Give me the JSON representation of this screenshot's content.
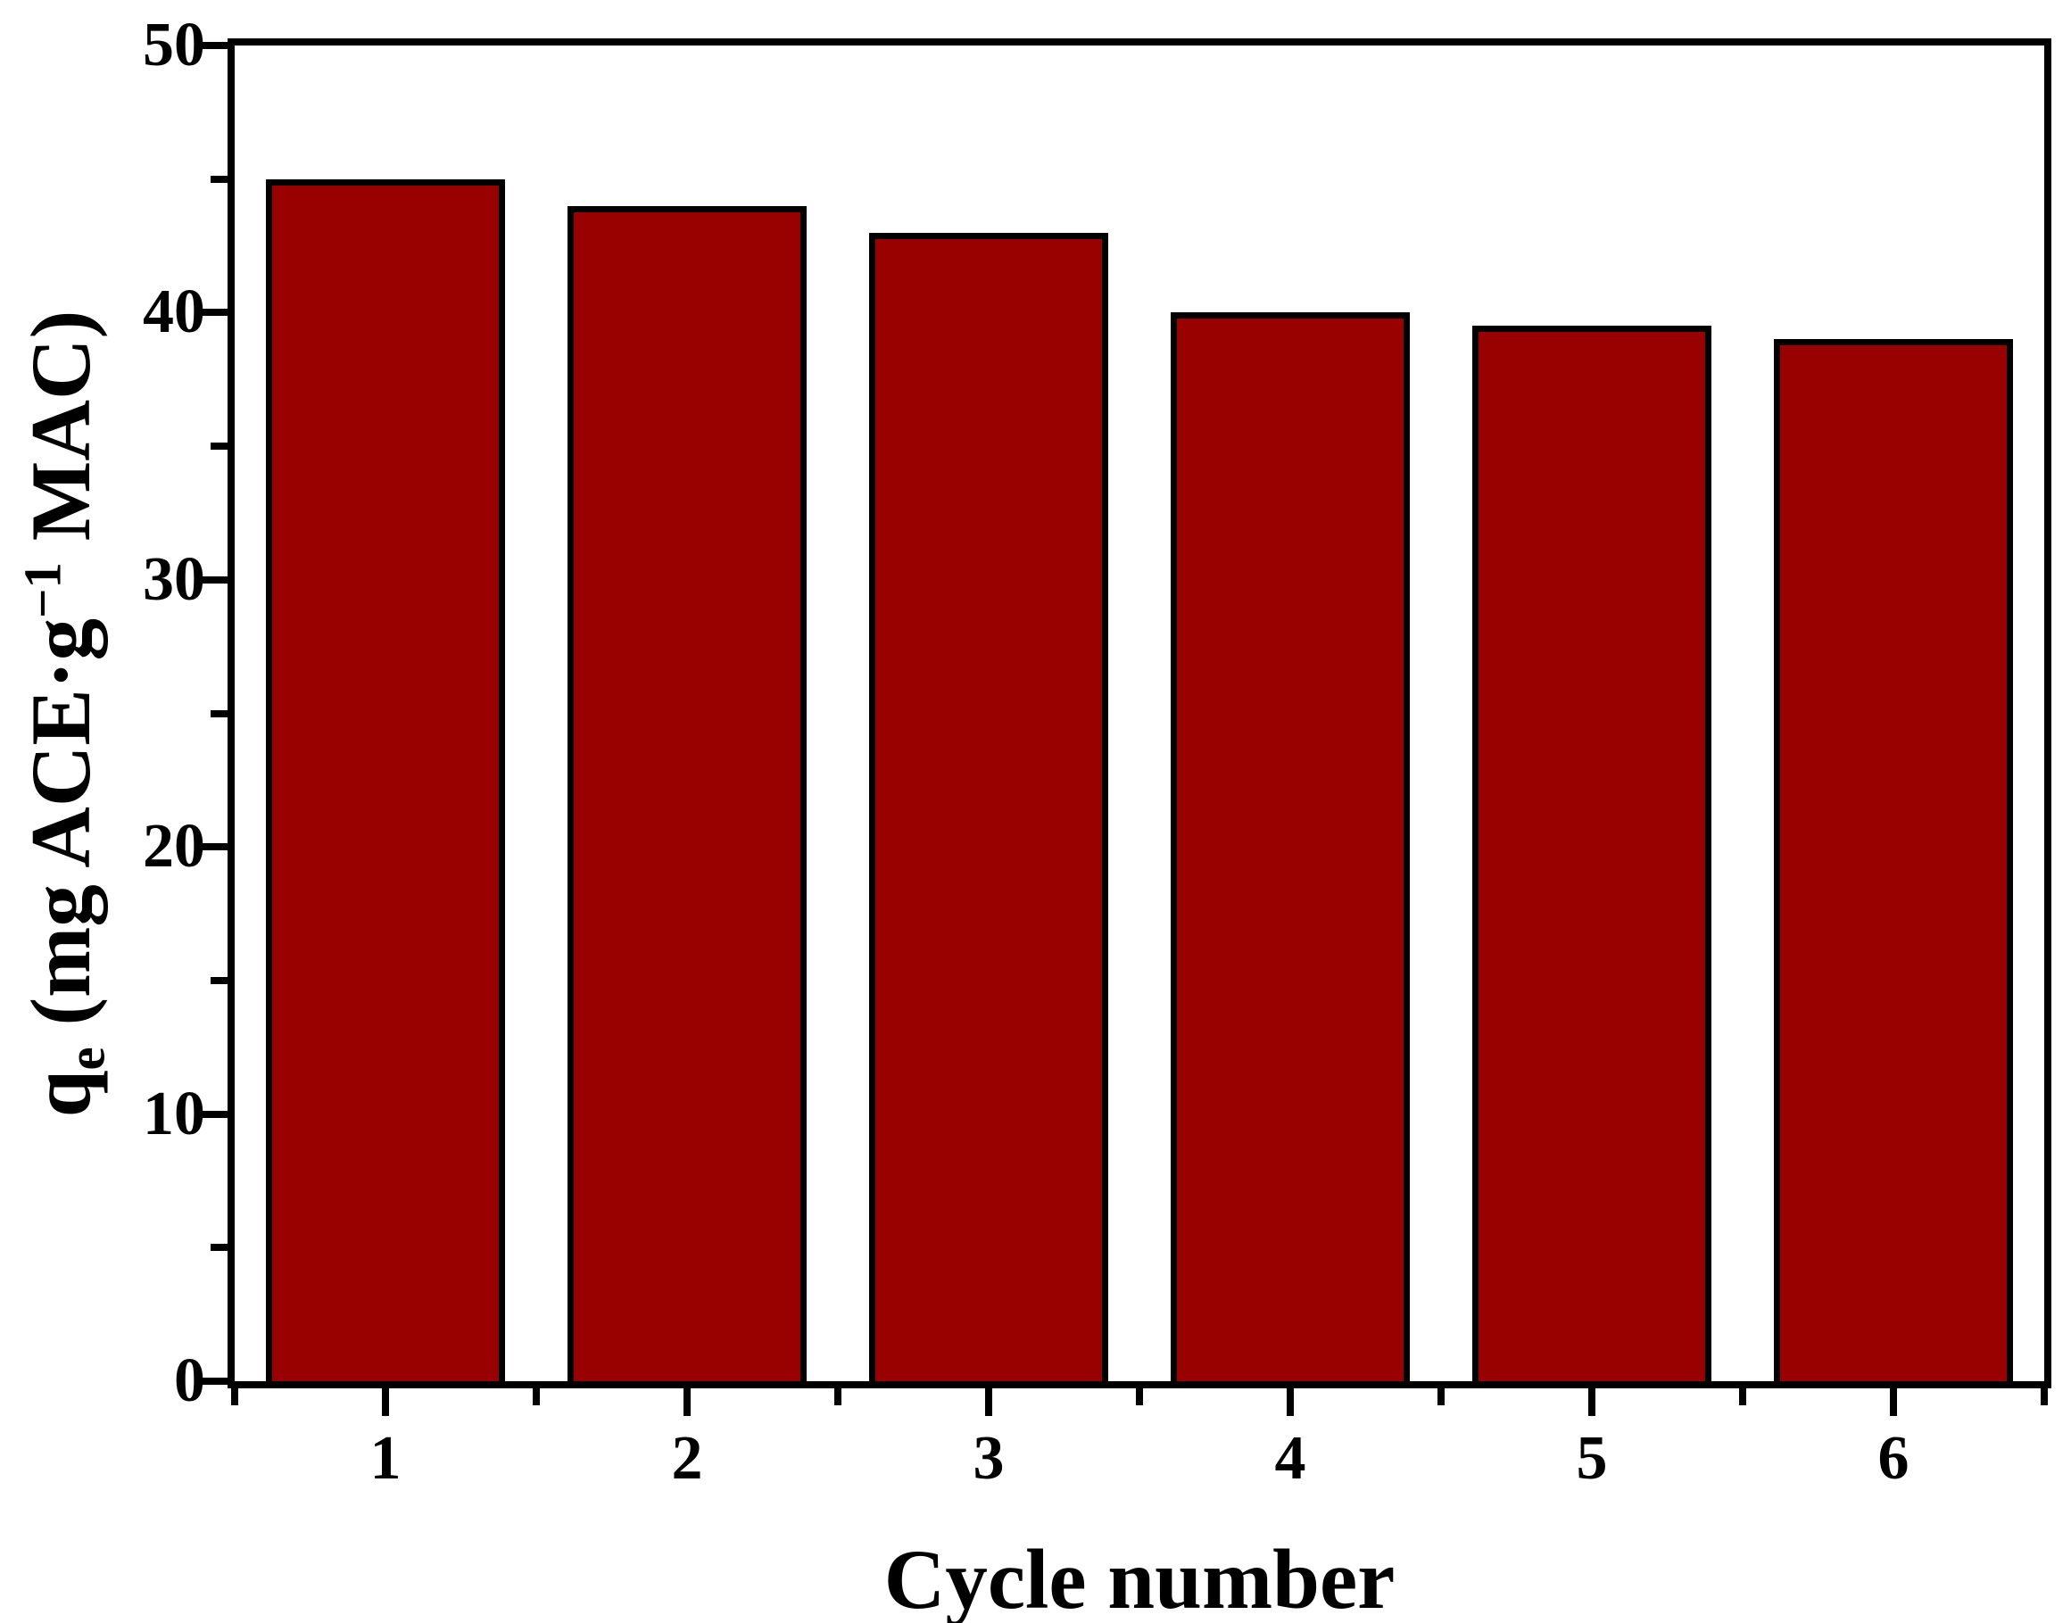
{
  "figure": {
    "background": "#ffffff",
    "text_color": "#000000"
  },
  "chart_data": {
    "type": "bar",
    "title": "",
    "categories": [
      "1",
      "2",
      "3",
      "4",
      "5",
      "6"
    ],
    "values": [
      45,
      44,
      43,
      40,
      39.5,
      39
    ],
    "xlabel": "Cycle number",
    "ylabel": "qe (mg ACE·g−1 MAC)",
    "ylabel_parts": {
      "base": "q",
      "subscript": "e",
      "middle": " (mg ACE·g",
      "superscript": "−1",
      "end": " MAC)"
    },
    "xlim": [
      0.5,
      6.5
    ],
    "ylim": [
      0,
      50
    ],
    "y_major_ticks": [
      "0",
      "10",
      "20",
      "30",
      "40",
      "50"
    ],
    "y_minor_ticks": [
      5,
      15,
      25,
      35,
      45
    ],
    "x_major_tick_positions": [
      1,
      2,
      3,
      4,
      5,
      6
    ],
    "x_minor_tick_positions": [
      0.5,
      1.5,
      2.5,
      3.5,
      4.5,
      5.5,
      6.5
    ],
    "bar_width_units": 0.79,
    "bar_fill_color": "#990000",
    "bar_border_color": "#000000",
    "axis_color": "#000000",
    "grid": false,
    "legend": null,
    "frame": "full-box",
    "tick_direction": "out"
  }
}
